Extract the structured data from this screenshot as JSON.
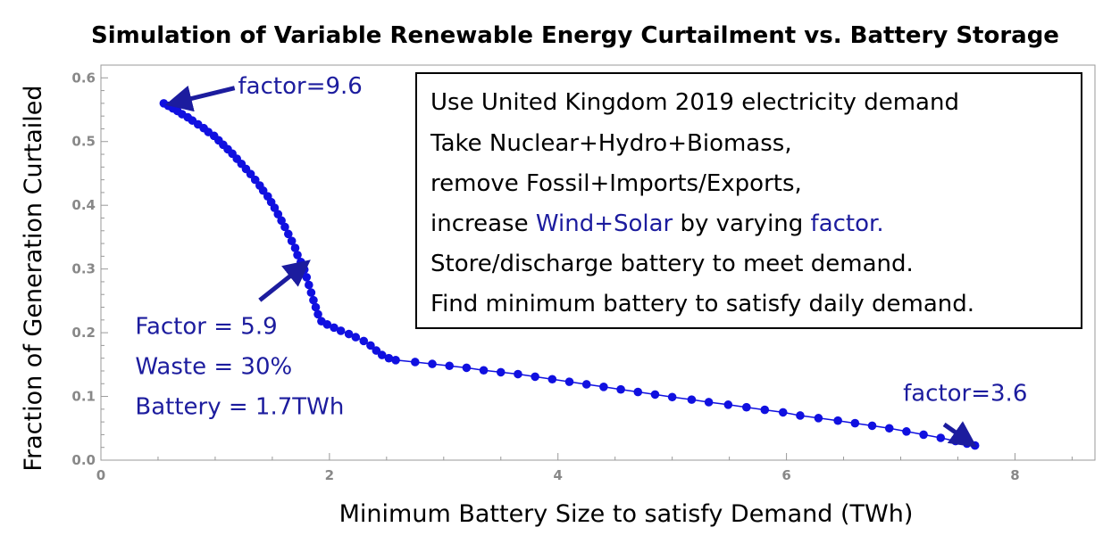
{
  "colors": {
    "series": "#1010e0",
    "annotation": "#1c1c9e",
    "axis": "#999999",
    "tick_label": "#888888",
    "frame": "#999999"
  },
  "chart_data": {
    "type": "scatter",
    "title": "Simulation of Variable Renewable Energy Curtailment vs. Battery Storage",
    "xlabel": "Minimum Battery Size to satisfy Demand (TWh)",
    "ylabel": "Fraction of Generation Curtailed",
    "xlim": [
      0,
      8.7
    ],
    "ylim": [
      0,
      0.62
    ],
    "x_ticks": [
      {
        "value": 0,
        "label": "0"
      },
      {
        "value": 2,
        "label": "2"
      },
      {
        "value": 4,
        "label": "4"
      },
      {
        "value": 6,
        "label": "6"
      },
      {
        "value": 8,
        "label": "8"
      }
    ],
    "y_ticks": [
      {
        "value": 0.0,
        "label": "0.0"
      },
      {
        "value": 0.1,
        "label": "0.1"
      },
      {
        "value": 0.2,
        "label": "0.2"
      },
      {
        "value": 0.3,
        "label": "0.3"
      },
      {
        "value": 0.4,
        "label": "0.4"
      },
      {
        "value": 0.5,
        "label": "0.5"
      },
      {
        "value": 0.6,
        "label": "0.6"
      }
    ],
    "grid": false,
    "series": [
      {
        "points": [
          [
            0.55,
            0.56
          ],
          [
            0.59,
            0.556
          ],
          [
            0.63,
            0.552
          ],
          [
            0.67,
            0.548
          ],
          [
            0.71,
            0.543
          ],
          [
            0.76,
            0.538
          ],
          [
            0.8,
            0.533
          ],
          [
            0.85,
            0.527
          ],
          [
            0.9,
            0.521
          ],
          [
            0.94,
            0.515
          ],
          [
            0.99,
            0.509
          ],
          [
            1.03,
            0.502
          ],
          [
            1.07,
            0.495
          ],
          [
            1.11,
            0.488
          ],
          [
            1.15,
            0.481
          ],
          [
            1.19,
            0.473
          ],
          [
            1.23,
            0.465
          ],
          [
            1.27,
            0.457
          ],
          [
            1.31,
            0.449
          ],
          [
            1.35,
            0.44
          ],
          [
            1.39,
            0.431
          ],
          [
            1.42,
            0.423
          ],
          [
            1.46,
            0.414
          ],
          [
            1.49,
            0.405
          ],
          [
            1.52,
            0.396
          ],
          [
            1.55,
            0.386
          ],
          [
            1.58,
            0.376
          ],
          [
            1.61,
            0.366
          ],
          [
            1.64,
            0.355
          ],
          [
            1.67,
            0.344
          ],
          [
            1.7,
            0.333
          ],
          [
            1.72,
            0.322
          ],
          [
            1.75,
            0.311
          ],
          [
            1.78,
            0.299
          ],
          [
            1.8,
            0.287
          ],
          [
            1.82,
            0.275
          ],
          [
            1.84,
            0.263
          ],
          [
            1.86,
            0.251
          ],
          [
            1.88,
            0.24
          ],
          [
            1.9,
            0.229
          ],
          [
            1.93,
            0.218
          ],
          [
            1.98,
            0.213
          ],
          [
            2.04,
            0.208
          ],
          [
            2.1,
            0.203
          ],
          [
            2.17,
            0.198
          ],
          [
            2.23,
            0.193
          ],
          [
            2.3,
            0.187
          ],
          [
            2.36,
            0.18
          ],
          [
            2.41,
            0.172
          ],
          [
            2.46,
            0.165
          ],
          [
            2.52,
            0.16
          ],
          [
            2.58,
            0.157
          ],
          [
            2.75,
            0.154
          ],
          [
            2.9,
            0.151
          ],
          [
            3.05,
            0.148
          ],
          [
            3.2,
            0.145
          ],
          [
            3.35,
            0.141
          ],
          [
            3.5,
            0.138
          ],
          [
            3.65,
            0.135
          ],
          [
            3.8,
            0.131
          ],
          [
            3.95,
            0.127
          ],
          [
            4.1,
            0.123
          ],
          [
            4.25,
            0.119
          ],
          [
            4.4,
            0.115
          ],
          [
            4.55,
            0.111
          ],
          [
            4.7,
            0.107
          ],
          [
            4.85,
            0.103
          ],
          [
            5.0,
            0.099
          ],
          [
            5.17,
            0.095
          ],
          [
            5.32,
            0.091
          ],
          [
            5.49,
            0.087
          ],
          [
            5.65,
            0.083
          ],
          [
            5.81,
            0.079
          ],
          [
            5.97,
            0.075
          ],
          [
            6.12,
            0.07
          ],
          [
            6.28,
            0.066
          ],
          [
            6.45,
            0.062
          ],
          [
            6.6,
            0.058
          ],
          [
            6.75,
            0.054
          ],
          [
            6.9,
            0.05
          ],
          [
            7.05,
            0.045
          ],
          [
            7.2,
            0.04
          ],
          [
            7.35,
            0.035
          ],
          [
            7.48,
            0.03
          ],
          [
            7.58,
            0.026
          ],
          [
            7.65,
            0.023
          ]
        ]
      }
    ],
    "annotations": [
      {
        "text": "factor=9.6",
        "x": 1.2,
        "y": 0.575,
        "arrow_from": [
          1.17,
          0.584
        ],
        "arrow_to": [
          0.62,
          0.56
        ]
      },
      {
        "text": "factor=3.6",
        "x": 7.02,
        "y": 0.093,
        "arrow_from": [
          7.38,
          0.056
        ],
        "arrow_to": [
          7.62,
          0.026
        ]
      },
      {
        "text": "Factor = 5.9",
        "x": 0.3,
        "y": 0.198,
        "arrow_from": [
          1.39,
          0.251
        ],
        "arrow_to": [
          1.79,
          0.308
        ]
      },
      {
        "text": "Waste = 30%",
        "x": 0.3,
        "y": 0.135
      },
      {
        "text": "Battery = 1.7TWh",
        "x": 0.3,
        "y": 0.072
      }
    ]
  },
  "notes": {
    "line1": "Use United Kingdom 2019 electricity demand",
    "line2": "Take Nuclear+Hydro+Biomass,",
    "line3": "remove Fossil+Imports/Exports,",
    "line4_pre": "increase ",
    "line4_hl1": "Wind+Solar",
    "line4_mid": " by varying ",
    "line4_hl2": "factor.",
    "line5": "Store/discharge battery to meet demand.",
    "line6": "Find minimum battery to satisfy daily demand."
  }
}
